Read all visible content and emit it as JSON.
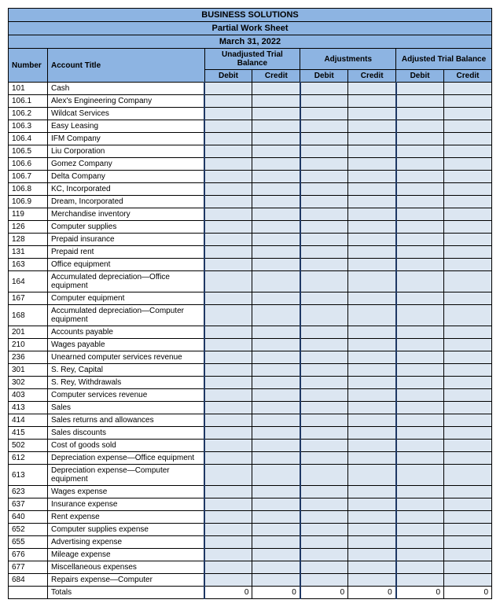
{
  "header": {
    "company": "BUSINESS SOLUTIONS",
    "title": "Partial Work Sheet",
    "date": "March 31, 2022"
  },
  "columns": {
    "number": "Number",
    "account_title": "Account Title",
    "unadjusted": "Unadjusted Trial Balance",
    "adjustments": "Adjustments",
    "adjusted": "Adjusted Trial Balance",
    "debit": "Debit",
    "credit": "Credit"
  },
  "rows": [
    {
      "num": "101",
      "title": "Cash"
    },
    {
      "num": "106.1",
      "title": "Alex's Engineering Company"
    },
    {
      "num": "106.2",
      "title": "Wildcat Services"
    },
    {
      "num": "106.3",
      "title": "Easy Leasing"
    },
    {
      "num": "106.4",
      "title": "IFM Company"
    },
    {
      "num": "106.5",
      "title": "Liu Corporation"
    },
    {
      "num": "106.6",
      "title": "Gomez Company"
    },
    {
      "num": "106.7",
      "title": "Delta Company"
    },
    {
      "num": "106.8",
      "title": "KC, Incorporated"
    },
    {
      "num": "106.9",
      "title": "Dream, Incorporated"
    },
    {
      "num": "119",
      "title": "Merchandise inventory"
    },
    {
      "num": "126",
      "title": "Computer supplies"
    },
    {
      "num": "128",
      "title": "Prepaid insurance"
    },
    {
      "num": "131",
      "title": "Prepaid rent"
    },
    {
      "num": "163",
      "title": "Office equipment"
    },
    {
      "num": "164",
      "title": "Accumulated depreciation—Office equipment"
    },
    {
      "num": "167",
      "title": "Computer equipment"
    },
    {
      "num": "168",
      "title": "Accumulated depreciation—Computer equipment"
    },
    {
      "num": "201",
      "title": "Accounts payable"
    },
    {
      "num": "210",
      "title": "Wages payable"
    },
    {
      "num": "236",
      "title": "Unearned computer services revenue"
    },
    {
      "num": "301",
      "title": "S. Rey, Capital"
    },
    {
      "num": "302",
      "title": "S. Rey, Withdrawals"
    },
    {
      "num": "403",
      "title": "Computer services revenue"
    },
    {
      "num": "413",
      "title": "Sales"
    },
    {
      "num": "414",
      "title": "Sales returns and allowances"
    },
    {
      "num": "415",
      "title": "Sales discounts"
    },
    {
      "num": "502",
      "title": "Cost of goods sold"
    },
    {
      "num": "612",
      "title": "Depreciation expense—Office equipment"
    },
    {
      "num": "613",
      "title": "Depreciation expense—Computer equipment"
    },
    {
      "num": "623",
      "title": "Wages expense"
    },
    {
      "num": "637",
      "title": "Insurance expense"
    },
    {
      "num": "640",
      "title": "Rent expense"
    },
    {
      "num": "652",
      "title": "Computer supplies expense"
    },
    {
      "num": "655",
      "title": "Advertising expense"
    },
    {
      "num": "676",
      "title": "Mileage expense"
    },
    {
      "num": "677",
      "title": "Miscellaneous expenses"
    },
    {
      "num": "684",
      "title": "Repairs expense—Computer"
    }
  ],
  "totals": {
    "label": "Totals",
    "values": [
      "0",
      "0",
      "0",
      "0",
      "0",
      "0"
    ]
  },
  "style": {
    "header_bg": "#8db4e2",
    "cell_bg": "#dce6f1",
    "border_color": "#000000",
    "font_family": "Arial",
    "font_size_header": 11,
    "font_size_body": 10
  }
}
